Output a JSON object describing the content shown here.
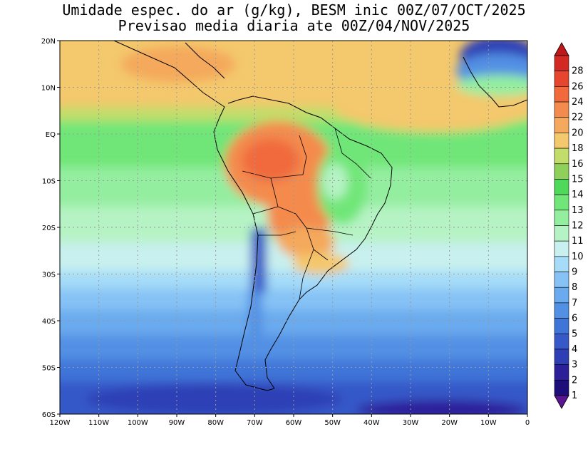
{
  "title_line1": "Umidade espec. do ar (g/kg), BESM inic 00Z/07/OCT/2025",
  "title_line2": "Previsao media diaria ate 00Z/04/NOV/2025",
  "lon_ticks": [
    "120W",
    "110W",
    "100W",
    "90W",
    "80W",
    "70W",
    "60W",
    "50W",
    "40W",
    "30W",
    "20W",
    "10W",
    "0"
  ],
  "lat_ticks": [
    "20N",
    "10N",
    "EQ",
    "10S",
    "20S",
    "30S",
    "40S",
    "50S",
    "60S"
  ],
  "map_extent": {
    "lon_min": -120,
    "lon_max": 0,
    "lat_min": -60,
    "lat_max": 20
  },
  "colorbar": {
    "labels": [
      "1",
      "2",
      "3",
      "4",
      "5",
      "6",
      "7",
      "8",
      "9",
      "10",
      "11",
      "12",
      "13",
      "14",
      "15",
      "16",
      "18",
      "20",
      "22",
      "24",
      "26",
      "28"
    ],
    "colors": [
      "#1e0e7a",
      "#2d1e9a",
      "#2e3fb5",
      "#3658c8",
      "#3f74d8",
      "#5290e4",
      "#6aaaee",
      "#86c2f5",
      "#a6dcf8",
      "#c8f0ee",
      "#b6f3c4",
      "#94eea0",
      "#71e678",
      "#4fd95a",
      "#8fd05a",
      "#c2dd6a",
      "#f4c86c",
      "#f4a95c",
      "#f48b4e",
      "#f06a3c",
      "#e6452e",
      "#d22a22"
    ],
    "under_color": "#5a1690",
    "over_color": "#c01818"
  },
  "units": "g/kg"
}
